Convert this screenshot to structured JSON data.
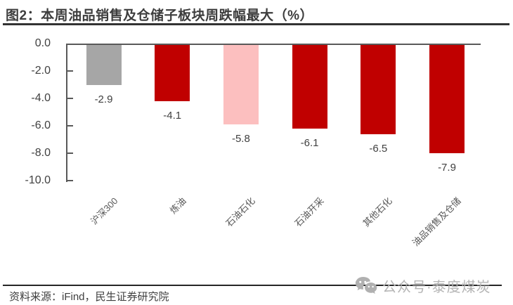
{
  "chart_data": {
    "type": "bar",
    "title": "图2：本周油品销售及仓储子板块周跌幅最大（%）",
    "categories": [
      "沪深300",
      "炼油",
      "石油石化",
      "石油开采",
      "其他石化",
      "油品销售及仓储"
    ],
    "values": [
      -2.9,
      -4.1,
      -5.8,
      -6.1,
      -6.5,
      -7.9
    ],
    "data_labels": [
      "-2.9",
      "-4.1",
      "-5.8",
      "-6.1",
      "-6.5",
      "-7.9"
    ],
    "bar_colors": [
      "#a6a6a6",
      "#c00000",
      "#fcbfbf",
      "#c00000",
      "#c00000",
      "#c00000"
    ],
    "ylabel": "",
    "xlabel": "",
    "ylim": [
      -10,
      0
    ],
    "yticks": {
      "values": [
        0,
        -2,
        -4,
        -6,
        -8,
        -10
      ],
      "labels": [
        "0.0",
        "-2.0",
        "-4.0",
        "-6.0",
        "-8.0",
        "-10.0"
      ]
    },
    "grid": false,
    "legend": "none"
  },
  "colors": {
    "bar_red": "#c00000",
    "bar_gray": "#a6a6a6",
    "bar_pink": "#fcbfbf",
    "axis": "#595959",
    "label_text": "#404040",
    "watermark": "#b5b5b5"
  },
  "footer": {
    "source": "资料来源：iFind，民生证券研究院"
  },
  "watermark": {
    "icon": "wechat-icon",
    "text": "公众号·泰度煤炭"
  }
}
